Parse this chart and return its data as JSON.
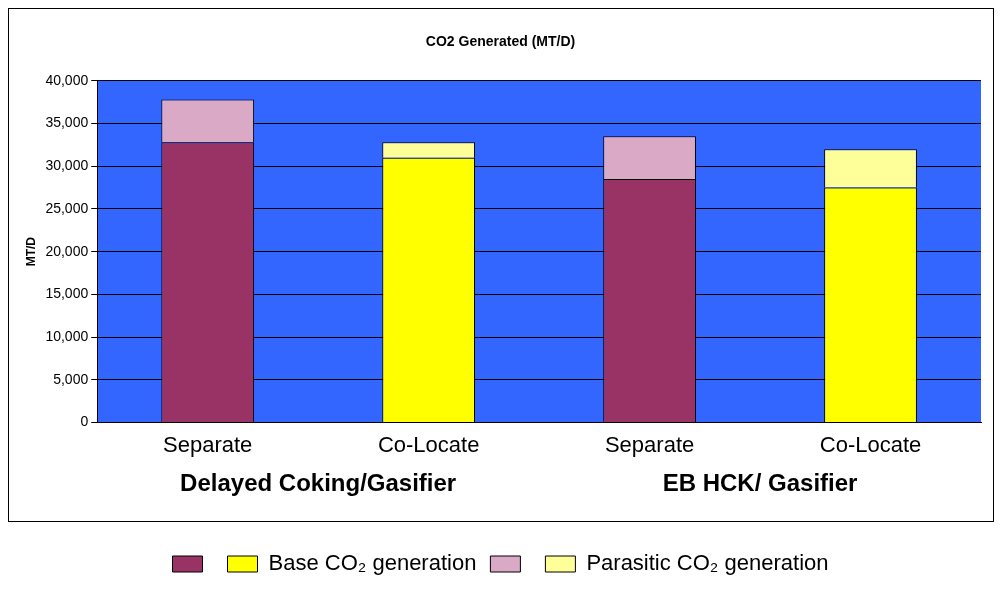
{
  "chart_data": {
    "type": "bar",
    "title": "CO2 Generated (MT/D)",
    "ylabel": "MT/D",
    "stacked": true,
    "categories": [
      "Separate",
      "Co-Locate",
      "Separate",
      "Co-Locate"
    ],
    "series": [
      {
        "name": "Base CO₂ generation",
        "colors": [
          "#993366",
          "#ffff00",
          "#993366",
          "#ffff00"
        ],
        "values": [
          32800,
          31000,
          28500,
          27500
        ]
      },
      {
        "name": "Parasitic CO₂ generation",
        "colors": [
          "#d9a9c6",
          "#ffff99",
          "#d9a9c6",
          "#ffff99"
        ],
        "values": [
          5000,
          1800,
          5000,
          4500
        ]
      }
    ],
    "annotations": [
      "Delayed Coking/Gasifier",
      "EB HCK/ Gasifier"
    ],
    "ylim": [
      0,
      40000
    ],
    "yticks": [
      0,
      {
        "value": 5000,
        "label": "5,000"
      },
      {
        "value": 10000,
        "label": "10,000"
      },
      {
        "value": 15000,
        "label": "15,000"
      },
      {
        "value": 20000,
        "label": "20,000"
      },
      {
        "value": 25000,
        "label": "25,000"
      },
      {
        "value": 30000,
        "label": "30,000"
      },
      {
        "value": 35000,
        "label": "35,000"
      },
      {
        "value": 40000,
        "label": "40,000"
      }
    ],
    "grid": "y",
    "legend": "bottom"
  }
}
